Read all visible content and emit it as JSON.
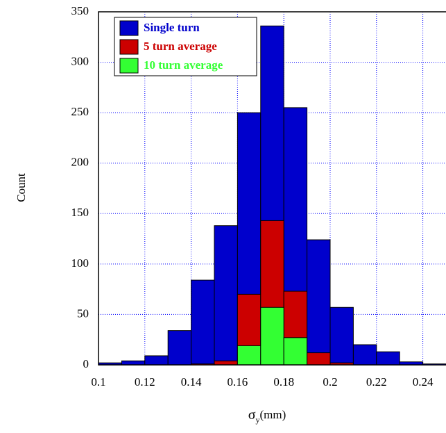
{
  "chart_data": {
    "type": "histogram",
    "y_label": "Count",
    "x_label": {
      "symbol": "σ",
      "subscript": "y",
      "unit": "(mm)"
    },
    "bins": [
      0.1,
      0.11,
      0.12,
      0.13,
      0.14,
      0.15,
      0.16,
      0.17,
      0.18,
      0.19,
      0.2,
      0.21,
      0.22,
      0.23,
      0.24,
      0.25
    ],
    "series": [
      {
        "name": "Single turn",
        "color": "#0000cc",
        "values": [
          2,
          4,
          9,
          34,
          84,
          138,
          250,
          336,
          255,
          124,
          57,
          20,
          13,
          3,
          1
        ]
      },
      {
        "name": "5 turn average",
        "color": "#cc0000",
        "values": [
          0,
          0,
          0,
          0,
          1,
          4,
          70,
          143,
          73,
          12,
          2,
          0,
          0,
          0,
          0
        ]
      },
      {
        "name": "10 turn average",
        "color": "#33ff33",
        "values": [
          0,
          0,
          0,
          0,
          0,
          0,
          19,
          57,
          27,
          0,
          0,
          0,
          0,
          0,
          0
        ]
      }
    ],
    "xlim": [
      0.1,
      0.25
    ],
    "ylim": [
      0,
      350
    ],
    "xticks": [
      0.1,
      0.12,
      0.14,
      0.16,
      0.18,
      0.2,
      0.22,
      0.24
    ],
    "yticks": [
      0,
      50,
      100,
      150,
      200,
      250,
      300,
      350
    ],
    "grid": true,
    "legend": "upper left"
  }
}
